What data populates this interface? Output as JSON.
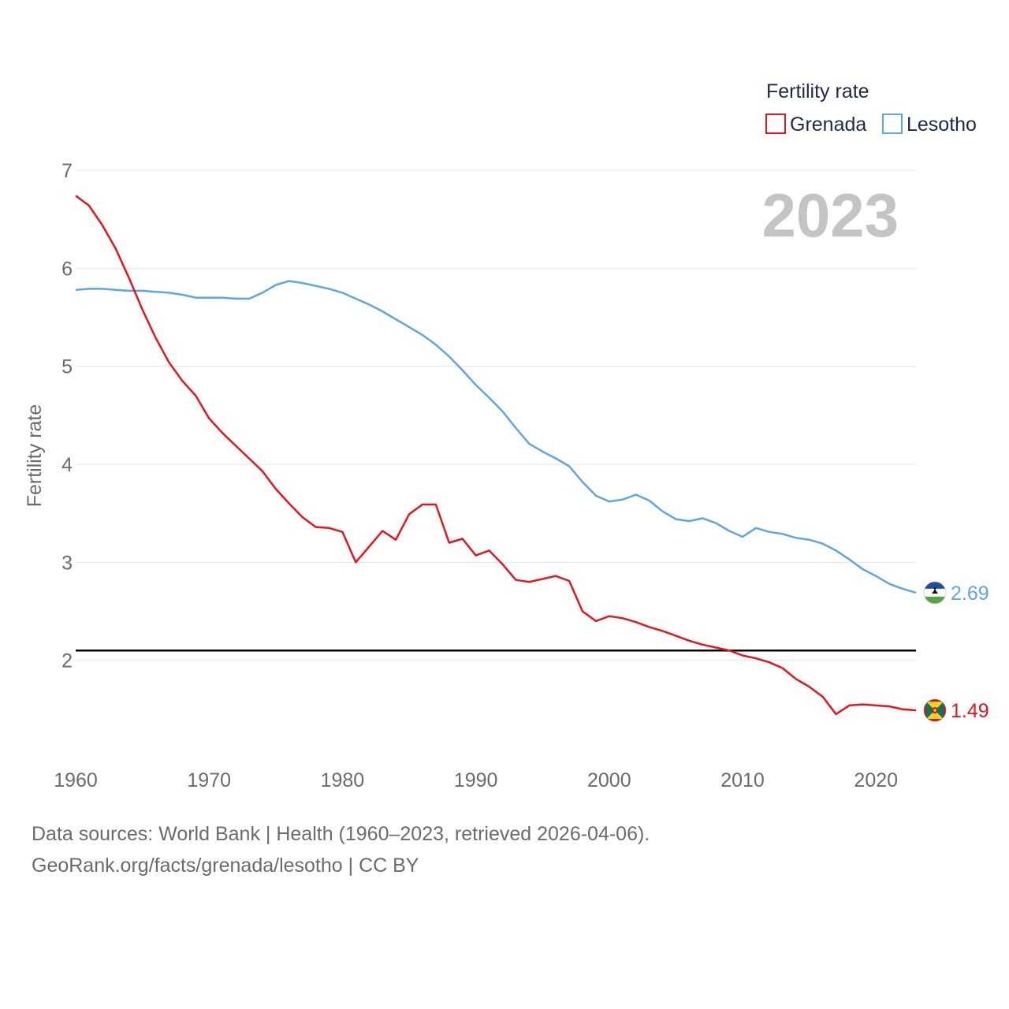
{
  "legend": {
    "title": "Fertility rate",
    "items": [
      {
        "name": "Grenada",
        "color": "#e8141c"
      },
      {
        "name": "Lesotho",
        "color": "#5ea5e8"
      }
    ]
  },
  "year_label": "2023",
  "source": {
    "line1": "Data sources: World Bank | Health (1960–2023, retrieved 2026-04-06).",
    "line2": "GeoRank.org/facts/grenada/lesotho | CC BY"
  },
  "chart_data": {
    "type": "line",
    "title": "Fertility rate",
    "xlabel": "",
    "ylabel": "Fertility rate",
    "xlim": [
      1960,
      2023
    ],
    "ylim": [
      1,
      7
    ],
    "x_ticks": [
      1960,
      1970,
      1980,
      1990,
      2000,
      2010,
      2020
    ],
    "y_ticks": [
      2,
      3,
      4,
      5,
      6,
      7
    ],
    "reference_line": {
      "y": 2.1,
      "color": "#000000"
    },
    "x": [
      1960,
      1961,
      1962,
      1963,
      1964,
      1965,
      1966,
      1967,
      1968,
      1969,
      1970,
      1971,
      1972,
      1973,
      1974,
      1975,
      1976,
      1977,
      1978,
      1979,
      1980,
      1981,
      1982,
      1983,
      1984,
      1985,
      1986,
      1987,
      1988,
      1989,
      1990,
      1991,
      1992,
      1993,
      1994,
      1995,
      1996,
      1997,
      1998,
      1999,
      2000,
      2001,
      2002,
      2003,
      2004,
      2005,
      2006,
      2007,
      2008,
      2009,
      2010,
      2011,
      2012,
      2013,
      2014,
      2015,
      2016,
      2017,
      2018,
      2019,
      2020,
      2021,
      2022,
      2023
    ],
    "series": [
      {
        "name": "Grenada",
        "color": "#e8141c",
        "end_label": "1.49",
        "values": [
          6.74,
          6.64,
          6.44,
          6.2,
          5.9,
          5.58,
          5.29,
          5.04,
          4.85,
          4.7,
          4.47,
          4.32,
          4.19,
          4.06,
          3.93,
          3.75,
          3.6,
          3.46,
          3.36,
          3.35,
          3.31,
          3.0,
          3.16,
          3.32,
          3.23,
          3.49,
          3.59,
          3.59,
          3.2,
          3.24,
          3.07,
          3.12,
          2.98,
          2.82,
          2.8,
          2.83,
          2.86,
          2.81,
          2.5,
          2.4,
          2.45,
          2.43,
          2.39,
          2.34,
          2.3,
          2.25,
          2.2,
          2.16,
          2.13,
          2.1,
          2.05,
          2.02,
          1.98,
          1.92,
          1.81,
          1.73,
          1.63,
          1.45,
          1.54,
          1.55,
          1.54,
          1.53,
          1.5,
          1.49
        ]
      },
      {
        "name": "Lesotho",
        "color": "#5ea5e8",
        "end_label": "2.69",
        "values": [
          5.78,
          5.79,
          5.79,
          5.78,
          5.77,
          5.77,
          5.76,
          5.75,
          5.73,
          5.7,
          5.7,
          5.7,
          5.69,
          5.69,
          5.75,
          5.83,
          5.87,
          5.85,
          5.82,
          5.79,
          5.75,
          5.69,
          5.63,
          5.56,
          5.48,
          5.4,
          5.32,
          5.22,
          5.1,
          4.96,
          4.81,
          4.68,
          4.54,
          4.37,
          4.21,
          4.13,
          4.06,
          3.98,
          3.82,
          3.68,
          3.62,
          3.64,
          3.69,
          3.63,
          3.52,
          3.44,
          3.42,
          3.45,
          3.4,
          3.32,
          3.26,
          3.35,
          3.31,
          3.29,
          3.25,
          3.23,
          3.19,
          3.12,
          3.03,
          2.93,
          2.86,
          2.78,
          2.73,
          2.69
        ]
      }
    ]
  }
}
